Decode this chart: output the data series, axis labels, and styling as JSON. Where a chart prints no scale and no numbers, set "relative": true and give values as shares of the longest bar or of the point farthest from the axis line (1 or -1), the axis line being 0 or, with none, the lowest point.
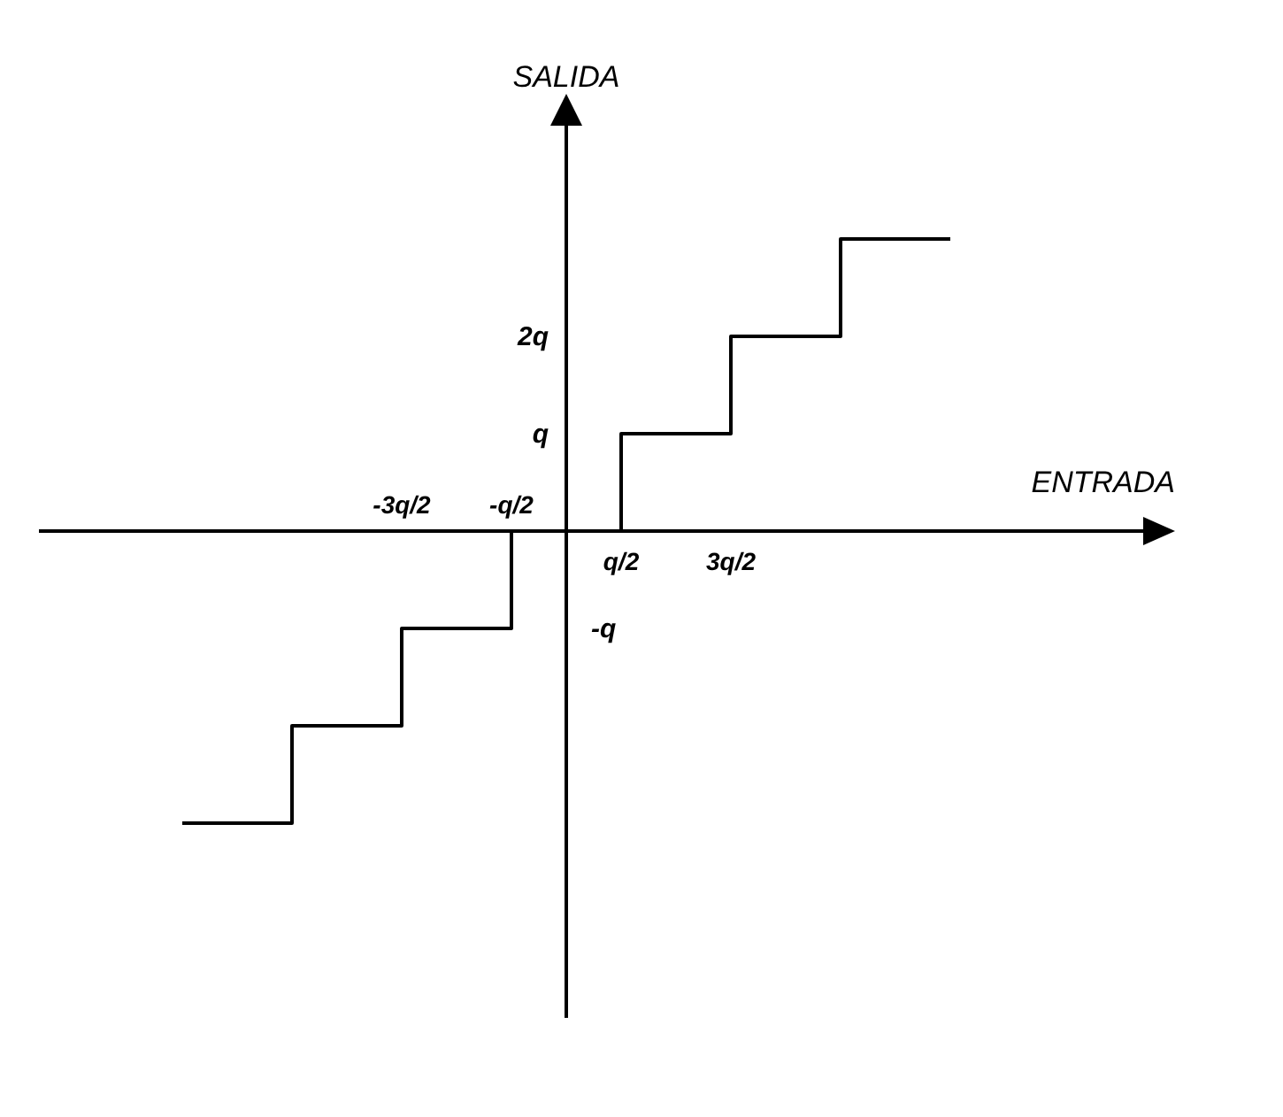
{
  "chart_data": {
    "type": "step",
    "xlabel": "ENTRADA",
    "ylabel": "SALIDA",
    "relative": true,
    "categories": [
      null,
      null,
      "-3q/2",
      "-q/2",
      "q/2",
      "3q/2",
      null,
      null
    ],
    "series": [
      {
        "color": "#000000",
        "values": [
          -1,
          -0.667,
          -0.333,
          0,
          0.333,
          0.667,
          1,
          1
        ]
      }
    ],
    "annotations": [
      "2q",
      "q",
      "-q"
    ]
  }
}
